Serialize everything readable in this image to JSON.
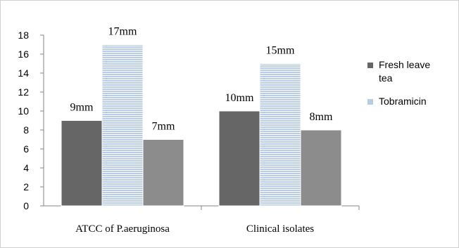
{
  "chart_data": {
    "type": "bar",
    "categories": [
      "ATCC of P.aeruginosa",
      "Clinical isolates"
    ],
    "series": [
      {
        "name": "Fresh leave tea",
        "values": [
          9,
          10
        ],
        "labels": [
          "9mm",
          "10mm"
        ],
        "color": "#666666"
      },
      {
        "name": "Tobramicin",
        "values": [
          17,
          15
        ],
        "labels": [
          "17mm",
          "15mm"
        ],
        "color": "#b8cce4"
      },
      {
        "name": "",
        "values": [
          7,
          8
        ],
        "labels": [
          "7mm",
          "8mm"
        ],
        "color": "#8c8c8c"
      }
    ],
    "y_ticks": [
      "0",
      "2",
      "4",
      "6",
      "8",
      "10",
      "12",
      "14",
      "16",
      "18"
    ],
    "ylim": [
      0,
      18
    ],
    "grid": false,
    "legend_position": "right"
  }
}
